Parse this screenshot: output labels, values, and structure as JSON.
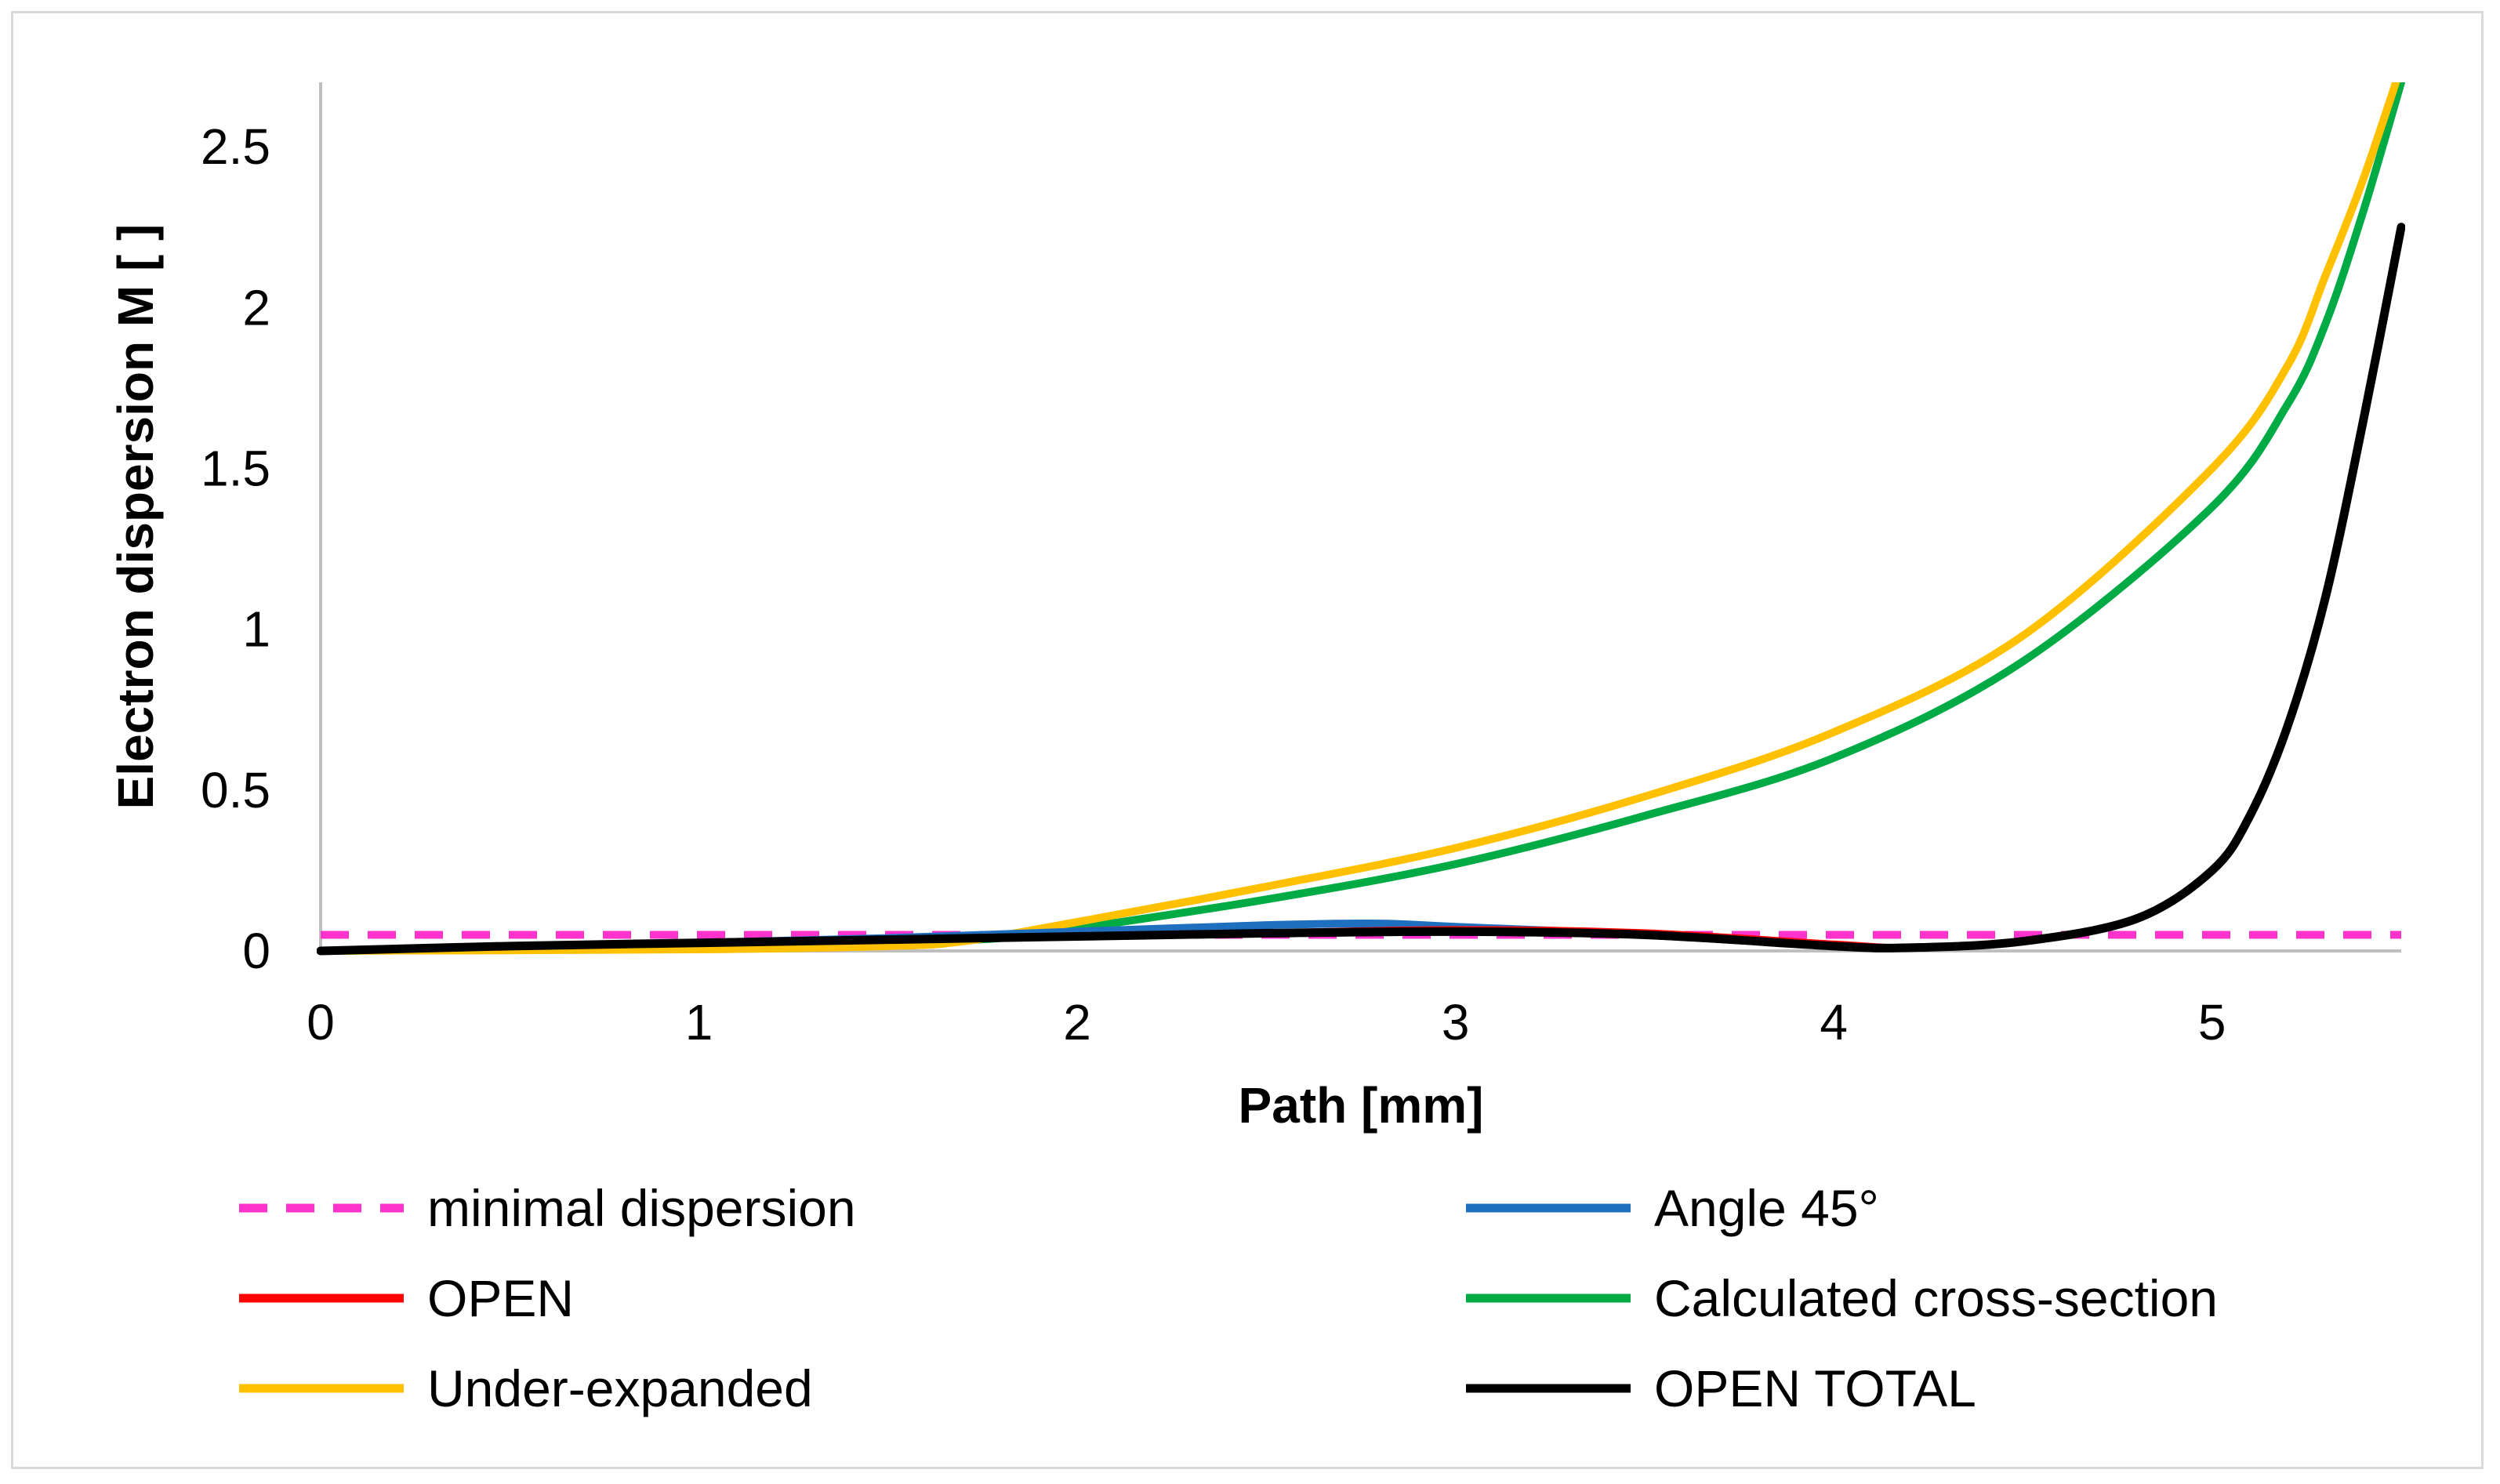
{
  "chart_data": {
    "type": "line",
    "title": "",
    "xlabel": "Path [mm]",
    "ylabel": "Electron dispersion M [ ]",
    "xlim": [
      0,
      5.5
    ],
    "ylim": [
      0,
      2.7
    ],
    "xticks": [
      0,
      1,
      2,
      3,
      4,
      5
    ],
    "yticks": [
      0,
      0.5,
      1,
      1.5,
      2,
      2.5
    ],
    "xtick_labels": [
      "0",
      "1",
      "2",
      "3",
      "4",
      "5"
    ],
    "ytick_labels": [
      "0",
      "0.5",
      "1",
      "1.5",
      "2",
      "2.5"
    ],
    "grid": false,
    "legend_position": "bottom",
    "series": [
      {
        "name": "minimal dispersion",
        "color": "#ff33cc",
        "dash": "dashed",
        "x": [
          0,
          5.5
        ],
        "y": [
          0.05,
          0.05
        ]
      },
      {
        "name": "Angle 45°",
        "color": "#1f6fbf",
        "dash": "solid",
        "x": [
          0,
          0.5,
          1,
          1.5,
          2,
          2.5,
          2.8,
          3,
          3.5,
          4,
          4.2,
          4.5,
          4.8,
          5,
          5.1,
          5.2,
          5.3,
          5.4,
          5.5
        ],
        "y": [
          0,
          0.015,
          0.025,
          0.04,
          0.06,
          0.08,
          0.085,
          0.075,
          0.05,
          0.015,
          0.01,
          0.03,
          0.1,
          0.25,
          0.42,
          0.7,
          1.1,
          1.65,
          2.25
        ]
      },
      {
        "name": "OPEN",
        "color": "#ff0000",
        "dash": "solid",
        "x": [
          0,
          0.5,
          1,
          1.5,
          2,
          2.5,
          3,
          3.5,
          4,
          4.2,
          4.5,
          4.8,
          5,
          5.1,
          5.2,
          5.3,
          5.4,
          5.5
        ],
        "y": [
          0,
          0.015,
          0.025,
          0.035,
          0.045,
          0.055,
          0.065,
          0.055,
          0.02,
          0.01,
          0.03,
          0.1,
          0.25,
          0.42,
          0.7,
          1.1,
          1.65,
          2.25
        ]
      },
      {
        "name": "Calculated cross-section",
        "color": "#00aa44",
        "dash": "solid",
        "x": [
          0,
          1,
          1.5,
          1.8,
          2,
          2.5,
          3,
          3.5,
          4,
          4.5,
          5,
          5.2,
          5.3,
          5.4,
          5.5
        ],
        "y": [
          0,
          0.01,
          0.025,
          0.04,
          0.07,
          0.16,
          0.27,
          0.42,
          0.6,
          0.9,
          1.38,
          1.7,
          1.95,
          2.3,
          2.7
        ]
      },
      {
        "name": "Under-expanded",
        "color": "#ffc000",
        "dash": "solid",
        "x": [
          0,
          1,
          1.5,
          1.7,
          2,
          2.5,
          3,
          3.5,
          4,
          4.5,
          5,
          5.2,
          5.3,
          5.4,
          5.5
        ],
        "y": [
          0,
          0.005,
          0.015,
          0.03,
          0.09,
          0.2,
          0.32,
          0.48,
          0.68,
          0.98,
          1.5,
          1.82,
          2.1,
          2.4,
          2.75
        ]
      },
      {
        "name": "OPEN TOTAL",
        "color": "#000000",
        "dash": "solid",
        "x": [
          0,
          0.5,
          1,
          1.5,
          2,
          2.5,
          3,
          3.5,
          4,
          4.2,
          4.5,
          4.8,
          5,
          5.1,
          5.2,
          5.3,
          5.4,
          5.5
        ],
        "y": [
          0,
          0.015,
          0.025,
          0.035,
          0.045,
          0.055,
          0.06,
          0.05,
          0.015,
          0.01,
          0.03,
          0.1,
          0.25,
          0.42,
          0.7,
          1.1,
          1.65,
          2.25
        ]
      }
    ]
  }
}
